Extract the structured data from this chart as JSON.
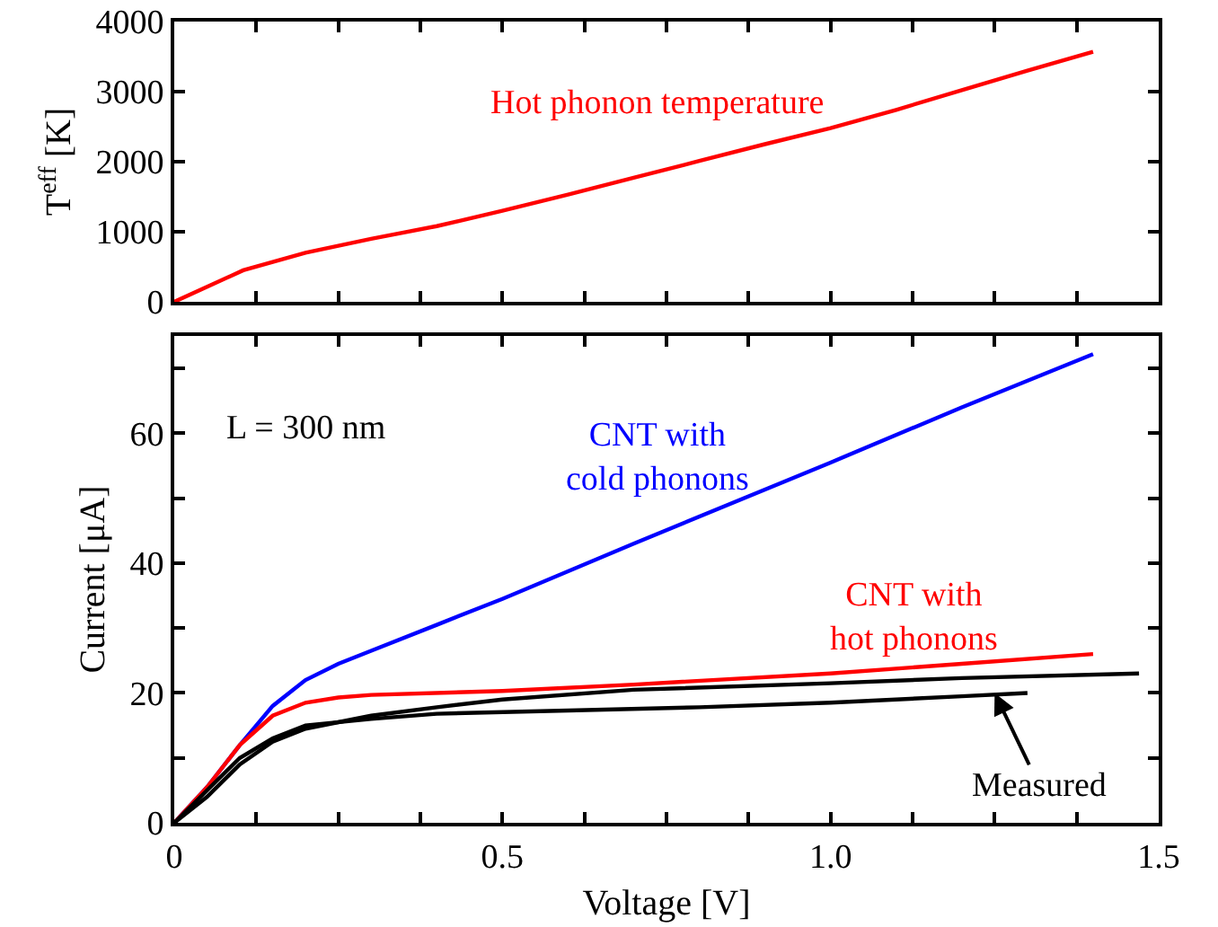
{
  "chart_data": [
    {
      "type": "line",
      "ylabel": "T$^{eff}$ [K]",
      "xlim": [
        0,
        1.5
      ],
      "ylim": [
        0,
        4000
      ],
      "xticks": [
        {
          "value": 0,
          "label": null
        },
        {
          "value": 0.125,
          "label": null
        },
        {
          "value": 0.25,
          "label": null
        },
        {
          "value": 0.375,
          "label": null
        },
        {
          "value": 0.5,
          "label": null
        },
        {
          "value": 0.625,
          "label": null
        },
        {
          "value": 0.75,
          "label": null
        },
        {
          "value": 0.875,
          "label": null
        },
        {
          "value": 1,
          "label": null
        },
        {
          "value": 1.125,
          "label": null
        },
        {
          "value": 1.25,
          "label": null
        },
        {
          "value": 1.375,
          "label": null
        },
        {
          "value": 1.5,
          "label": null
        }
      ],
      "yticks": [
        0,
        1000,
        2000,
        3000,
        4000
      ],
      "tick_labels": "y",
      "annotations": [
        "Hot phonon temperature"
      ],
      "series": [
        {
          "color": "#ff0000",
          "x": [
            0,
            0.105,
            0.2,
            0.3,
            0.4,
            0.5,
            0.6,
            0.7,
            0.8,
            0.9,
            1.0,
            1.1,
            1.2,
            1.3,
            1.4
          ],
          "values": [
            0,
            450,
            700,
            900,
            1080,
            1300,
            1530,
            1770,
            2010,
            2250,
            2480,
            2740,
            3020,
            3300,
            3570
          ]
        }
      ]
    },
    {
      "type": "line",
      "xlabel": "Voltage [V]",
      "ylabel": "Current [μA]",
      "xlim": [
        0,
        1.5
      ],
      "ylim": [
        0,
        75
      ],
      "xticks": [
        0,
        {
          "value": 0.125,
          "label": null
        },
        {
          "value": 0.25,
          "label": null
        },
        {
          "value": 0.375,
          "label": null
        },
        0.5,
        {
          "value": 0.625,
          "label": null
        },
        {
          "value": 0.75,
          "label": null
        },
        {
          "value": 0.875,
          "label": null
        },
        {
          "value": 1,
          "label": "1.0"
        },
        {
          "value": 1.125,
          "label": null
        },
        {
          "value": 1.25,
          "label": null
        },
        {
          "value": 1.375,
          "label": null
        },
        1.5
      ],
      "yticks": [
        0,
        {
          "value": 10,
          "label": null
        },
        20,
        {
          "value": 30,
          "label": null
        },
        40,
        {
          "value": 50,
          "label": null
        },
        60,
        {
          "value": 70,
          "label": null
        }
      ],
      "annotations": [
        "L = 300 nm",
        "CNT with\ncold phonons",
        "CNT with\nhot phonons",
        {
          "text": "Measured",
          "x": 1.25,
          "y": 20
        }
      ],
      "series": [
        {
          "color": "#0000ff",
          "x": [
            0,
            0.05,
            0.1,
            0.15,
            0.2,
            0.25,
            0.3,
            0.4,
            0.5,
            0.7,
            1.0,
            1.2,
            1.4
          ],
          "values": [
            0,
            5.5,
            12,
            18,
            22,
            24.5,
            26.5,
            30.5,
            34.5,
            43,
            55.5,
            64,
            72.2
          ]
        },
        {
          "color": "#ff0000",
          "x": [
            0,
            0.05,
            0.1,
            0.15,
            0.2,
            0.25,
            0.3,
            0.5,
            0.7,
            1.0,
            1.2,
            1.4
          ],
          "values": [
            0,
            5.5,
            12,
            16.5,
            18.5,
            19.3,
            19.7,
            20.3,
            21.3,
            23,
            24.5,
            26
          ]
        },
        {
          "color": "#000000",
          "x": [
            0,
            0.05,
            0.1,
            0.15,
            0.2,
            0.3,
            0.4,
            0.5,
            0.7,
            1.0,
            1.2,
            1.47
          ],
          "values": [
            0,
            4,
            9,
            12.5,
            14.5,
            16.5,
            17.8,
            19,
            20.5,
            21.5,
            22.3,
            23
          ]
        },
        {
          "color": "#000000",
          "x": [
            0,
            0.05,
            0.1,
            0.15,
            0.2,
            0.3,
            0.4,
            0.6,
            0.8,
            1.0,
            1.2,
            1.3
          ],
          "values": [
            0,
            5,
            10,
            13,
            15,
            16,
            16.8,
            17.3,
            17.8,
            18.5,
            19.5,
            20
          ]
        }
      ]
    }
  ]
}
